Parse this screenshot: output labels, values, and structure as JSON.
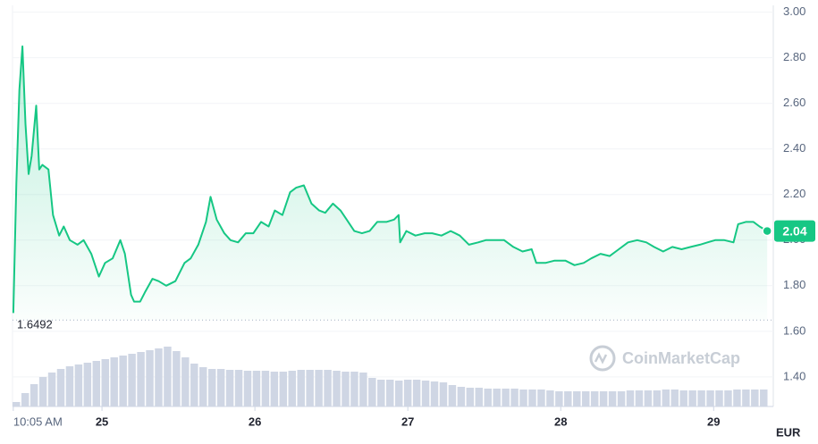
{
  "chart_data": {
    "type": "line",
    "series": [
      {
        "color": "#16c784",
        "x": [
          24.42,
          24.44,
          24.46,
          24.48,
          24.5,
          24.52,
          24.54,
          24.57,
          24.59,
          24.61,
          24.65,
          24.68,
          24.72,
          24.75,
          24.79,
          24.84,
          24.88,
          24.93,
          24.98,
          25.02,
          25.07,
          25.12,
          25.15,
          25.19,
          25.21,
          25.25,
          25.28,
          25.33,
          25.37,
          25.42,
          25.48,
          25.54,
          25.58,
          25.63,
          25.68,
          25.71,
          25.75,
          25.8,
          25.84,
          25.89,
          25.94,
          25.99,
          26.04,
          26.09,
          26.13,
          26.18,
          26.23,
          26.27,
          26.32,
          26.37,
          26.42,
          26.46,
          26.51,
          26.56,
          26.6,
          26.65,
          26.7,
          26.75,
          26.8,
          26.86,
          26.91,
          26.94,
          26.95,
          26.99,
          27.05,
          27.11,
          27.16,
          27.22,
          27.28,
          27.34,
          27.4,
          27.46,
          27.51,
          27.57,
          27.63,
          27.69,
          27.75,
          27.81,
          27.84,
          27.9,
          27.96,
          28.03,
          28.09,
          28.15,
          28.2,
          28.26,
          28.32,
          28.38,
          28.44,
          28.5,
          28.56,
          28.61,
          28.67,
          28.73,
          28.79,
          28.85,
          28.91,
          28.96,
          29.01,
          29.07,
          29.13,
          29.16,
          29.21,
          29.26,
          29.3,
          29.35
        ],
        "values": [
          1.68,
          2.25,
          2.66,
          2.85,
          2.51,
          2.29,
          2.37,
          2.59,
          2.31,
          2.33,
          2.31,
          2.11,
          2.02,
          2.06,
          2.0,
          1.98,
          2.0,
          1.94,
          1.84,
          1.9,
          1.92,
          2.0,
          1.94,
          1.76,
          1.73,
          1.73,
          1.77,
          1.83,
          1.82,
          1.8,
          1.82,
          1.9,
          1.92,
          1.98,
          2.08,
          2.19,
          2.09,
          2.03,
          2.0,
          1.99,
          2.03,
          2.03,
          2.08,
          2.06,
          2.13,
          2.11,
          2.21,
          2.23,
          2.24,
          2.16,
          2.13,
          2.12,
          2.16,
          2.13,
          2.09,
          2.04,
          2.03,
          2.04,
          2.08,
          2.08,
          2.09,
          2.11,
          1.99,
          2.04,
          2.02,
          2.03,
          2.03,
          2.02,
          2.04,
          2.02,
          1.98,
          1.99,
          2.0,
          2.0,
          2.0,
          1.97,
          1.95,
          1.96,
          1.9,
          1.9,
          1.91,
          1.91,
          1.89,
          1.9,
          1.92,
          1.94,
          1.93,
          1.96,
          1.99,
          2.0,
          1.99,
          1.97,
          1.95,
          1.97,
          1.96,
          1.97,
          1.98,
          1.99,
          2.0,
          2.0,
          1.99,
          2.07,
          2.08,
          2.08,
          2.06,
          2.04
        ]
      }
    ],
    "volume": [
      5,
      15,
      25,
      33,
      38,
      42,
      45,
      47,
      49,
      51,
      53,
      55,
      57,
      59,
      61,
      63,
      65,
      67,
      62,
      55,
      48,
      44,
      42,
      42,
      41,
      41,
      40,
      40,
      40,
      39,
      39,
      40,
      41,
      41,
      41,
      41,
      40,
      39,
      39,
      38,
      32,
      30,
      30,
      29,
      30,
      30,
      29,
      28,
      27,
      24,
      22,
      21,
      21,
      20,
      20,
      20,
      20,
      19,
      19,
      19,
      18,
      17,
      17,
      17,
      17,
      17,
      17,
      17,
      17,
      18,
      18,
      18,
      18,
      19,
      19,
      18,
      18,
      18,
      18,
      18,
      18,
      19,
      19,
      19,
      19
    ],
    "vlim": [
      0,
      100
    ],
    "xlim": [
      24.415,
      29.39
    ],
    "xticks": [
      {
        "value": 24.42,
        "label": "10:05 AM"
      },
      25,
      26,
      27,
      28,
      29
    ],
    "ylim": [
      1.27,
      3.03
    ],
    "yticks": [
      {
        "value": 1.4,
        "label": "1.40"
      },
      {
        "value": 1.6,
        "label": "1.60"
      },
      {
        "value": 1.8,
        "label": "1.80"
      },
      {
        "value": 2.0,
        "label": "2.00"
      },
      {
        "value": 2.2,
        "label": "2.20"
      },
      {
        "value": 2.4,
        "label": "2.40"
      },
      {
        "value": 2.6,
        "label": "2.60"
      },
      {
        "value": 2.8,
        "label": "2.80"
      },
      {
        "value": 3.0,
        "label": "3.00"
      }
    ],
    "grid": true,
    "low": 1.6492,
    "current_price": 2.04,
    "currency": "EUR",
    "watermark": "CoinMarketCap"
  }
}
